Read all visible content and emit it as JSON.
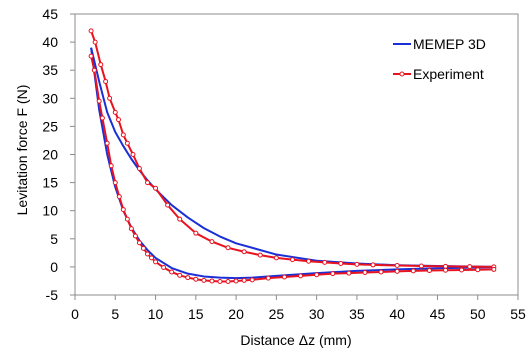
{
  "chart_data": {
    "type": "line",
    "xlabel": "Distance Δz (mm)",
    "ylabel": "Levitation force F (N)",
    "xlim": [
      0,
      55
    ],
    "ylim": [
      -5,
      45
    ],
    "xticks": [
      0,
      5,
      10,
      15,
      20,
      25,
      30,
      35,
      40,
      45,
      50,
      55
    ],
    "yticks": [
      -5,
      0,
      5,
      10,
      15,
      20,
      25,
      30,
      35,
      40,
      45
    ],
    "grid": false,
    "legend_position": "top-right",
    "colors": {
      "memep": "#1a2fd6",
      "experiment": "#e8131f"
    },
    "series": [
      {
        "name": "MEMEP 3D",
        "style": "line",
        "segments": [
          {
            "x": [
              2,
              3,
              4,
              5,
              6,
              7,
              8,
              9,
              10,
              12,
              14,
              16,
              18,
              20,
              25,
              30,
              35,
              40,
              45,
              50,
              52
            ],
            "y": [
              39,
              33,
              27.5,
              24,
              21.5,
              19.2,
              17.2,
              15.4,
              13.8,
              11,
              8.8,
              6.9,
              5.4,
              4.2,
              2.2,
              1.1,
              0.6,
              0.3,
              0.15,
              0.05,
              0
            ]
          },
          {
            "x": [
              2,
              3,
              4,
              5,
              6,
              7,
              8,
              9,
              10,
              12,
              14,
              16,
              18,
              20,
              22,
              25,
              30,
              35,
              40,
              45,
              50,
              52
            ],
            "y": [
              39,
              28,
              20,
              14.2,
              10,
              7,
              4.7,
              3,
              1.6,
              -0.2,
              -1.2,
              -1.7,
              -1.9,
              -2.0,
              -1.9,
              -1.6,
              -1.1,
              -0.7,
              -0.45,
              -0.25,
              -0.1,
              -0.05
            ]
          }
        ]
      },
      {
        "name": "Experiment",
        "style": "line-markers",
        "segments": [
          {
            "x": [
              2,
              2.5,
              3.2,
              3.8,
              4.3,
              5,
              5.4,
              6,
              6.5,
              7.2,
              8,
              9,
              10,
              11.5,
              13,
              15,
              17,
              19,
              21,
              23,
              25,
              27,
              29,
              31,
              33,
              35,
              37,
              40,
              43,
              46,
              49,
              52
            ],
            "y": [
              42,
              40,
              36,
              33,
              30,
              27.5,
              26.2,
              23.5,
              22,
              20,
              17.5,
              15,
              14,
              11,
              8.5,
              6,
              4.5,
              3.4,
              2.7,
              2.1,
              1.6,
              1.3,
              1.0,
              0.8,
              0.6,
              0.45,
              0.35,
              0.25,
              0.15,
              0.1,
              0.05,
              0
            ]
          },
          {
            "x": [
              2,
              2.4,
              3,
              3.4,
              4,
              4.5,
              5,
              5.5,
              6,
              6.5,
              7,
              7.5,
              8,
              8.5,
              9,
              9.5,
              10,
              11,
              12,
              13,
              14,
              15,
              16,
              17,
              18,
              19,
              20,
              21,
              22,
              24,
              26,
              28,
              30,
              32,
              34,
              36,
              38,
              40,
              42,
              44,
              46,
              48,
              50,
              52
            ],
            "y": [
              37.5,
              35,
              29.5,
              26.5,
              22,
              18,
              15,
              12.5,
              10.2,
              8.5,
              6.8,
              5.5,
              4.3,
              3.3,
              2.3,
              1.6,
              0.9,
              -0.1,
              -0.9,
              -1.5,
              -1.9,
              -2.2,
              -2.4,
              -2.5,
              -2.6,
              -2.6,
              -2.5,
              -2.4,
              -2.3,
              -2.0,
              -1.8,
              -1.6,
              -1.4,
              -1.2,
              -1.1,
              -1.0,
              -0.9,
              -0.8,
              -0.7,
              -0.65,
              -0.6,
              -0.55,
              -0.5,
              -0.45
            ]
          }
        ]
      }
    ]
  }
}
